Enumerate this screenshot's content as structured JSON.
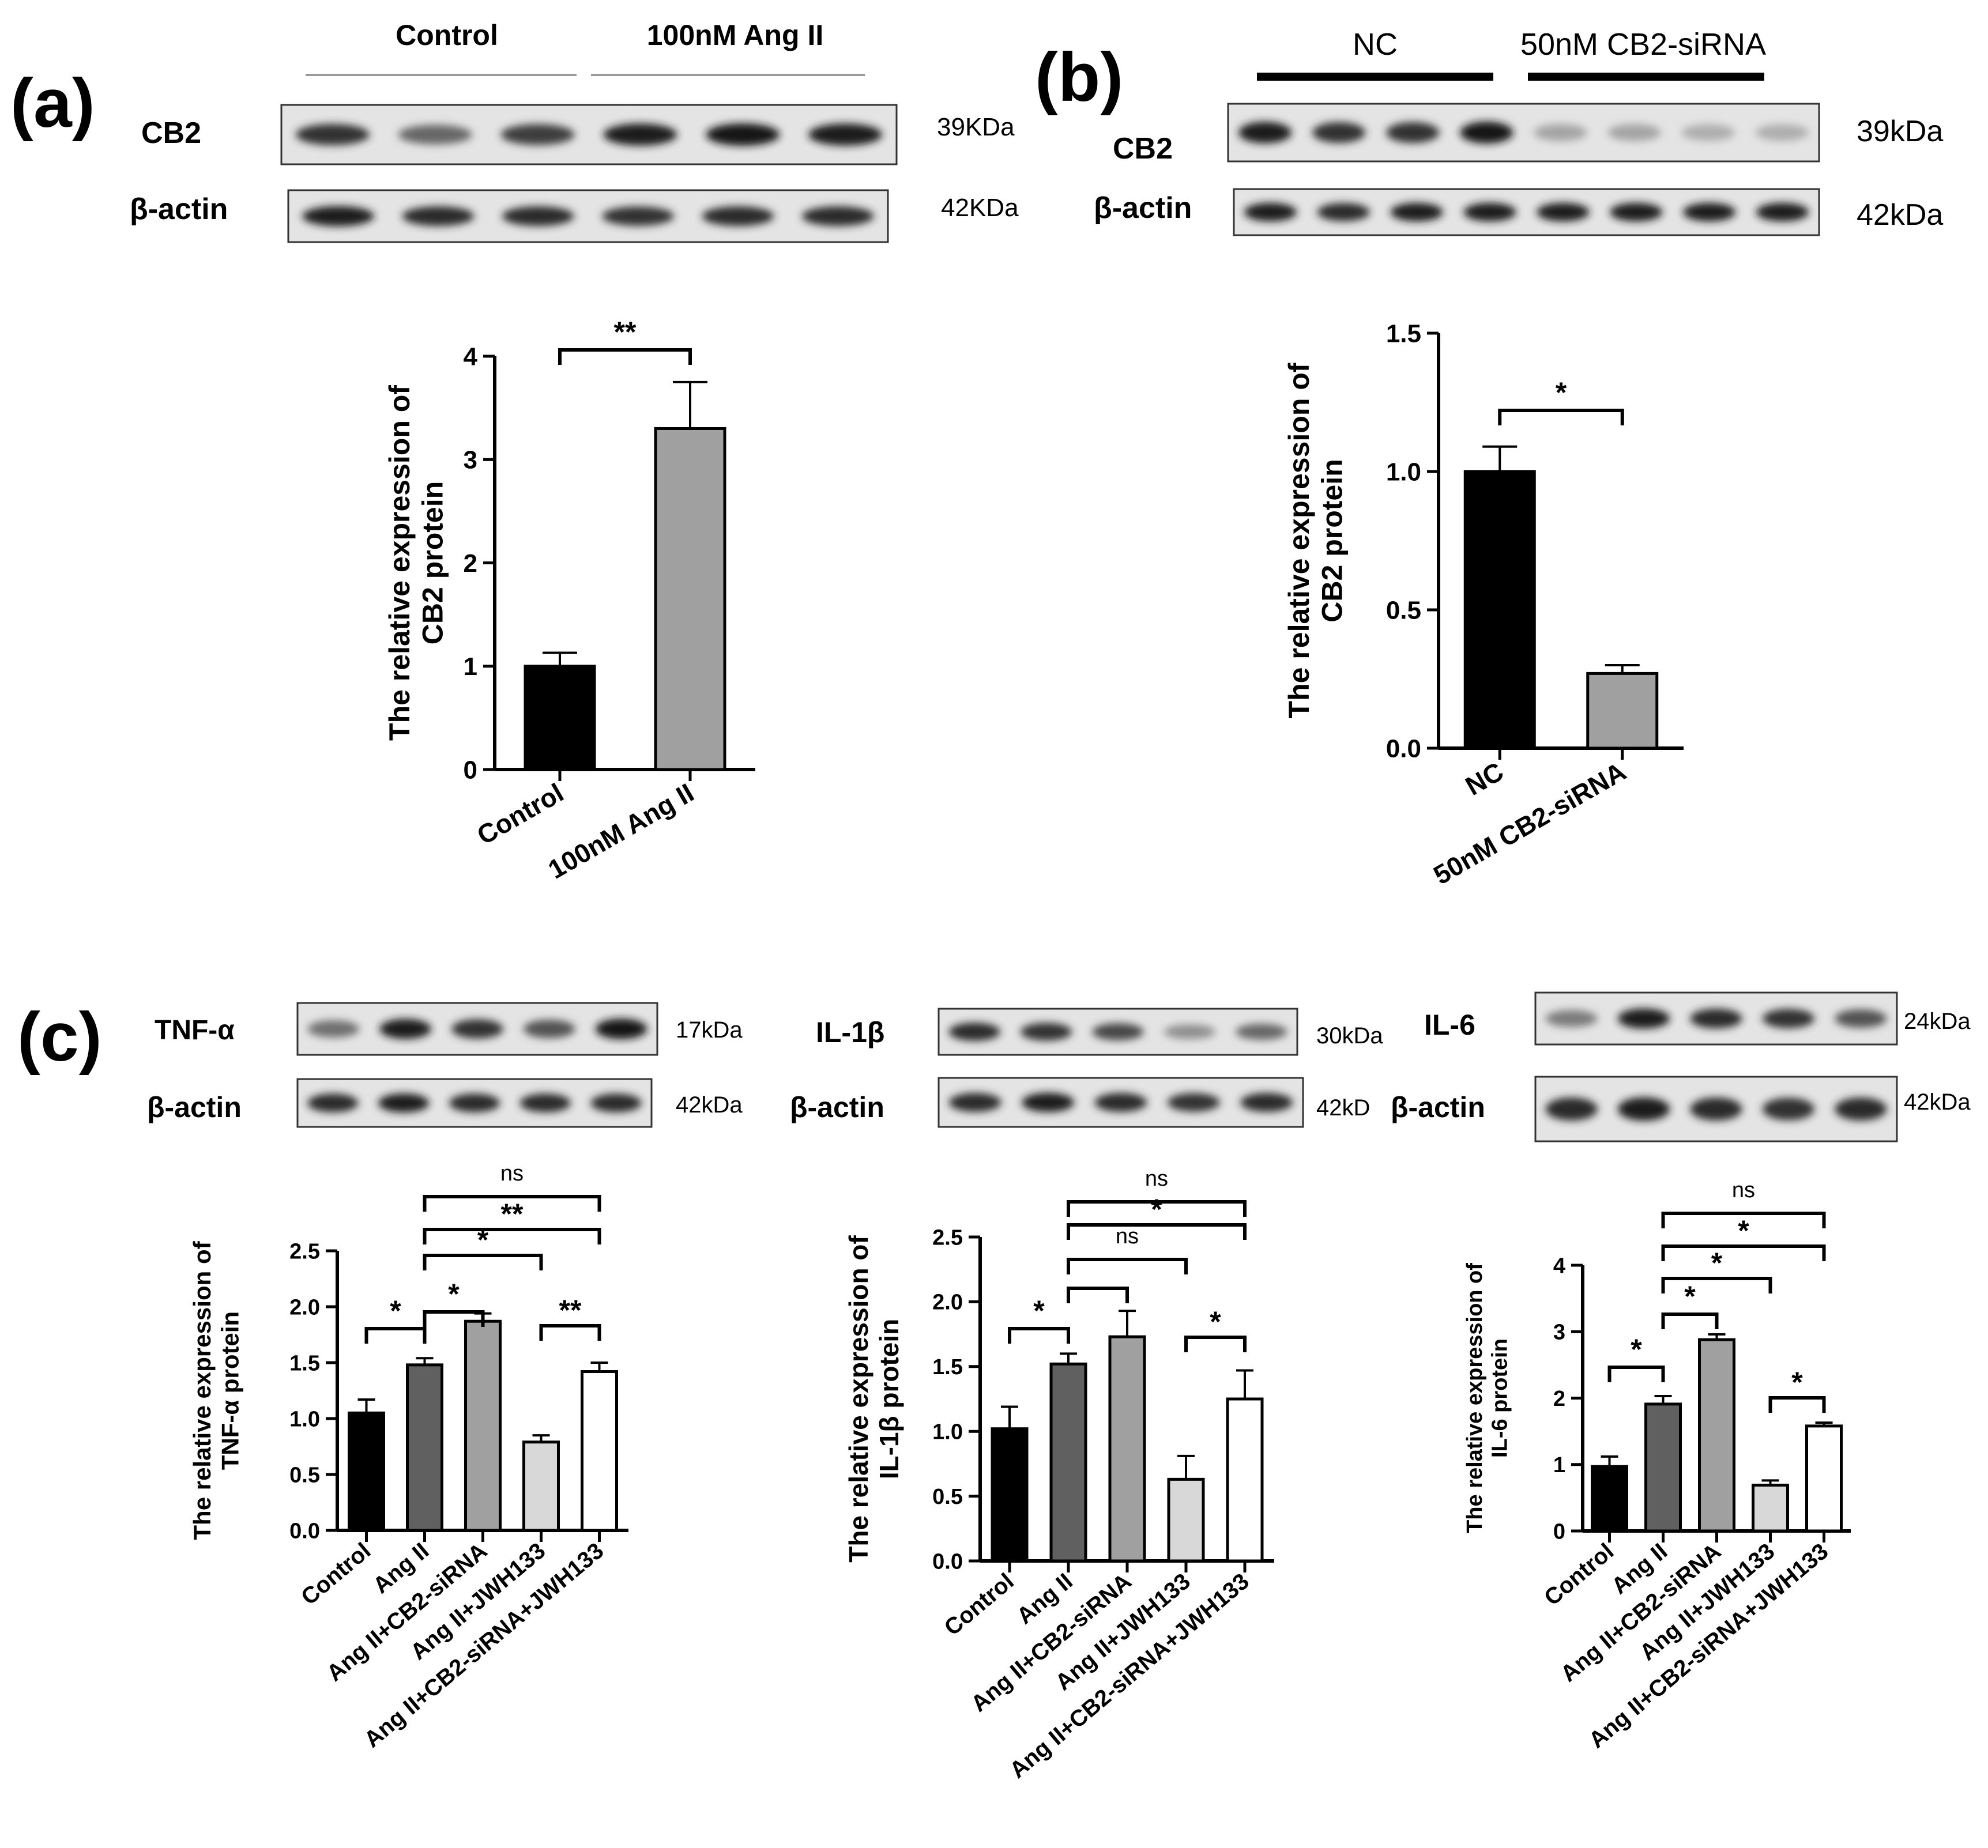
{
  "panels": {
    "a": {
      "letter": "(a)",
      "group_labels": [
        "Control",
        "100nM Ang II"
      ],
      "blots": [
        {
          "name": "CB2",
          "kda": "39KDa",
          "lanes": 6,
          "bands": [
            0.85,
            0.6,
            0.8,
            0.95,
            1.0,
            0.95
          ]
        },
        {
          "name": "β-actin",
          "kda": "42KDa",
          "lanes": 6,
          "bands": [
            0.95,
            0.9,
            0.9,
            0.85,
            0.9,
            0.9
          ]
        }
      ]
    },
    "b": {
      "letter": "(b)",
      "group_labels": [
        "NC",
        "50nM CB2-siRNA"
      ],
      "blots": [
        {
          "name": "CB2",
          "kda": "39kDa",
          "lanes": 8,
          "bands": [
            0.95,
            0.85,
            0.85,
            1.0,
            0.3,
            0.3,
            0.25,
            0.25
          ]
        },
        {
          "name": "β-actin",
          "kda": "42kDa",
          "lanes": 8,
          "bands": [
            0.95,
            0.9,
            0.95,
            0.95,
            0.95,
            0.95,
            0.95,
            0.95
          ]
        }
      ]
    },
    "c": {
      "letter": "(c)",
      "blots": [
        {
          "name": "TNF-α",
          "kda": "17kDa",
          "lanes": 5,
          "bands": [
            0.55,
            0.95,
            0.85,
            0.7,
            1.0
          ]
        },
        {
          "name": "β-actin",
          "kda": "42kDa",
          "lanes": 5,
          "bands": [
            0.9,
            0.95,
            0.9,
            0.9,
            0.9
          ]
        },
        {
          "name": "IL-1β",
          "kda": "30kDa",
          "lanes": 5,
          "bands": [
            0.9,
            0.85,
            0.75,
            0.4,
            0.6
          ]
        },
        {
          "name": "β-actin",
          "kda": "42kD",
          "lanes": 5,
          "bands": [
            0.9,
            0.95,
            0.9,
            0.85,
            0.9
          ]
        },
        {
          "name": "IL-6",
          "kda": "24kDa",
          "lanes": 5,
          "bands": [
            0.5,
            0.95,
            0.9,
            0.85,
            0.7
          ]
        },
        {
          "name": "β-actin",
          "kda": "42kDa",
          "lanes": 5,
          "bands": [
            0.9,
            0.95,
            0.9,
            0.85,
            0.9
          ]
        }
      ]
    }
  },
  "chart_data": [
    {
      "type": "bar",
      "categories": [
        "Control",
        "100nM Ang II"
      ],
      "values": [
        1.0,
        3.3
      ],
      "errors": [
        0.13,
        0.45
      ],
      "bar_colors": [
        "#000000",
        "#a0a0a0"
      ],
      "ylabel": [
        "The relative expression of",
        "CB2 protein"
      ],
      "ylim": [
        0,
        4
      ],
      "yticks": [
        0,
        1,
        2,
        3,
        4
      ],
      "tick_labels": [
        "0",
        "1",
        "2",
        "3",
        "4"
      ],
      "significance": [
        {
          "from": 0,
          "to": 1,
          "label": "**"
        }
      ]
    },
    {
      "type": "bar",
      "categories": [
        "NC",
        "50nM CB2-siRNA"
      ],
      "values": [
        1.0,
        0.27
      ],
      "errors": [
        0.09,
        0.03
      ],
      "bar_colors": [
        "#000000",
        "#a0a0a0"
      ],
      "ylabel": [
        "The relative expression of",
        "CB2 protein"
      ],
      "ylim": [
        0,
        1.5
      ],
      "yticks": [
        0,
        0.5,
        1.0,
        1.5
      ],
      "tick_labels": [
        "0.0",
        "0.5",
        "1.0",
        "1.5"
      ],
      "significance": [
        {
          "from": 0,
          "to": 1,
          "label": "*"
        }
      ]
    },
    {
      "type": "bar",
      "categories": [
        "Control",
        "Ang II",
        "Ang II+CB2-siRNA",
        "Ang II+JWH133",
        "Ang II+CB2-siRNA+JWH133"
      ],
      "values": [
        1.05,
        1.48,
        1.87,
        0.79,
        1.42
      ],
      "errors": [
        0.12,
        0.06,
        0.07,
        0.06,
        0.08
      ],
      "bar_colors": [
        "#000000",
        "#606060",
        "#a0a0a0",
        "#d8d8d8",
        "#ffffff"
      ],
      "ylabel": [
        "The relative expression of",
        "TNF-α protein"
      ],
      "ylim": [
        0,
        2.5
      ],
      "yticks": [
        0,
        0.5,
        1.0,
        1.5,
        2.0,
        2.5
      ],
      "tick_labels": [
        "0.0",
        "0.5",
        "1.0",
        "1.5",
        "2.0",
        "2.5"
      ],
      "significance": [
        {
          "from": 0,
          "to": 1,
          "label": "*"
        },
        {
          "from": 1,
          "to": 2,
          "label": "*"
        },
        {
          "from": 3,
          "to": 4,
          "label": "**"
        },
        {
          "from": 1,
          "to": 3,
          "label": "*"
        },
        {
          "from": 1,
          "to": 4,
          "label": "**"
        },
        {
          "from": 1,
          "to": 4,
          "label": "ns"
        }
      ]
    },
    {
      "type": "bar",
      "categories": [
        "Control",
        "Ang II",
        "Ang II+CB2-siRNA",
        "Ang II+JWH133",
        "Ang II+CB2-siRNA+JWH133"
      ],
      "values": [
        1.02,
        1.52,
        1.73,
        0.63,
        1.25
      ],
      "errors": [
        0.17,
        0.08,
        0.2,
        0.18,
        0.22
      ],
      "bar_colors": [
        "#000000",
        "#606060",
        "#a0a0a0",
        "#d8d8d8",
        "#ffffff"
      ],
      "ylabel": [
        "The relative expression of",
        "IL-1β protein"
      ],
      "ylim": [
        0,
        2.5
      ],
      "yticks": [
        0,
        0.5,
        1.0,
        1.5,
        2.0,
        2.5
      ],
      "tick_labels": [
        "0.0",
        "0.5",
        "1.0",
        "1.5",
        "2.0",
        "2.5"
      ],
      "significance": [
        {
          "from": 0,
          "to": 1,
          "label": "*"
        },
        {
          "from": 1,
          "to": 2,
          "label": ""
        },
        {
          "from": 3,
          "to": 4,
          "label": "*"
        },
        {
          "from": 1,
          "to": 3,
          "label": "ns"
        },
        {
          "from": 1,
          "to": 4,
          "label": "*"
        },
        {
          "from": 1,
          "to": 4,
          "label": "ns"
        }
      ]
    },
    {
      "type": "bar",
      "categories": [
        "Control",
        "Ang II",
        "Ang II+CB2-siRNA",
        "Ang II+JWH133",
        "Ang II+CB2-siRNA+JWH133"
      ],
      "values": [
        0.97,
        1.91,
        2.88,
        0.69,
        1.58
      ],
      "errors": [
        0.15,
        0.12,
        0.08,
        0.07,
        0.05
      ],
      "bar_colors": [
        "#000000",
        "#606060",
        "#a0a0a0",
        "#d8d8d8",
        "#ffffff"
      ],
      "ylabel": [
        "The relative expression of",
        "IL-6 protein"
      ],
      "ylim": [
        0,
        4
      ],
      "yticks": [
        0,
        1,
        2,
        3,
        4
      ],
      "tick_labels": [
        "0",
        "1",
        "2",
        "3",
        "4"
      ],
      "significance": [
        {
          "from": 0,
          "to": 1,
          "label": "*"
        },
        {
          "from": 1,
          "to": 2,
          "label": "*"
        },
        {
          "from": 3,
          "to": 4,
          "label": "*"
        },
        {
          "from": 1,
          "to": 3,
          "label": "*"
        },
        {
          "from": 1,
          "to": 4,
          "label": "*"
        },
        {
          "from": 1,
          "to": 4,
          "label": "ns"
        }
      ]
    }
  ]
}
